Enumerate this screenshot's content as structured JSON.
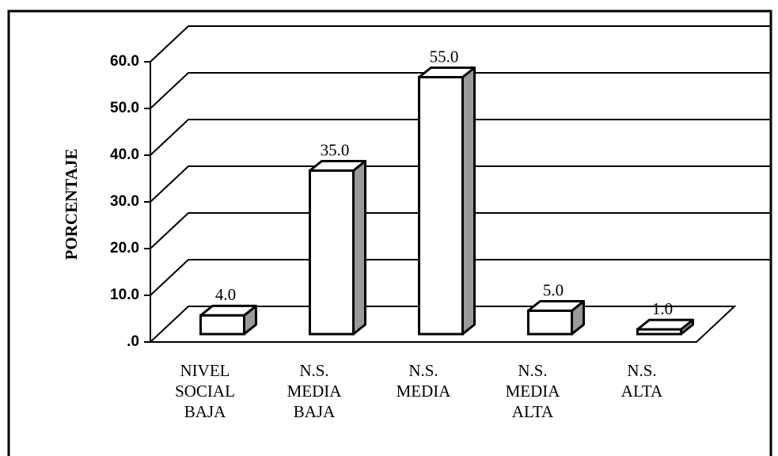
{
  "chart_data": {
    "type": "bar3d",
    "y_label": "PORCENTAJE",
    "categories": [
      "NIVEL SOCIAL BAJA",
      "N.S. MEDIA BAJA",
      "N.S. MEDIA",
      "N.S. MEDIA ALTA",
      "N.S. ALTA"
    ],
    "values": [
      4,
      35,
      55,
      5,
      1
    ],
    "value_labels": [
      "4.0",
      "35.0",
      "55.0",
      "5.0",
      "1.0"
    ],
    "color": "#ffffff",
    "side_color": "#9a9a9a",
    "ylim": [
      0,
      60
    ],
    "yticks": [
      {
        "value": 0,
        "label": ".0"
      },
      {
        "value": 10,
        "label": "10.0"
      },
      {
        "value": 20,
        "label": "20.0"
      },
      {
        "value": 30,
        "label": "30.0"
      },
      {
        "value": 40,
        "label": "40.0"
      },
      {
        "value": 50,
        "label": "50.0"
      },
      {
        "value": 60,
        "label": "60.0"
      }
    ],
    "grid": true
  }
}
